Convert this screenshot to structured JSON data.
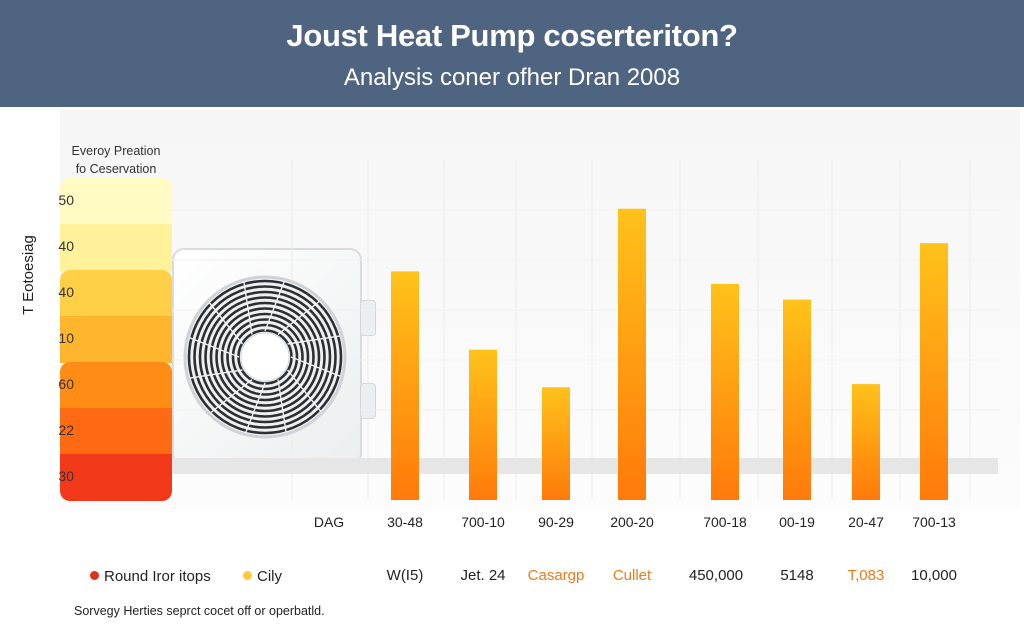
{
  "header": {
    "title": "Joust Heat Pump coserteriton?",
    "subtitle": "Analysis coner ofher Dran 2008"
  },
  "colors": {
    "header_bg": "#4e6480",
    "bar_top": "#ffc21a",
    "bar_bottom": "#ff7a0a"
  },
  "icon": "heat-pump-outdoor-unit",
  "scale": {
    "title_lines": [
      "Everoy Preation",
      "fo Ceservation"
    ],
    "ylabel": "T Eotoesiag",
    "segments": [
      {
        "label": "50",
        "color": "#fffbc2"
      },
      {
        "label": "40",
        "color": "#fff29a"
      },
      {
        "label": "40",
        "color": "#ffcf47"
      },
      {
        "label": "10",
        "color": "#ffb62e"
      },
      {
        "label": "60",
        "color": "#ff8c14"
      },
      {
        "label": "22",
        "color": "#ff6a12"
      },
      {
        "label": "30",
        "color": "#f23a1a"
      }
    ]
  },
  "chart_data": {
    "type": "bar",
    "title": "Joust Heat Pump coserteriton?",
    "subtitle": "Analysis coner ofher Dran 2008",
    "ylabel": "T Eotoesiag",
    "ylim": [
      0,
      100
    ],
    "grid": true,
    "categories": [
      "DAG",
      "30-48",
      "700-10",
      "90-29",
      "200-20",
      "700-18",
      "00-19",
      "20-47",
      "700-13"
    ],
    "values": [
      null,
      73,
      48,
      36,
      93,
      69,
      64,
      37,
      82
    ]
  },
  "legend": {
    "items": [
      {
        "label": "Round Iror itops",
        "color": "#e0301e"
      },
      {
        "label": "Cily",
        "color": "#ffc93c"
      }
    ]
  },
  "value_row": [
    {
      "text": "W(I5)",
      "color": "#222222"
    },
    {
      "text": "Jet. 24",
      "color": "#222222"
    },
    {
      "text": "Casargp",
      "color": "#f07a1a"
    },
    {
      "text": "Cullet",
      "color": "#f07a1a"
    },
    {
      "text": "450,000",
      "color": "#222222"
    },
    {
      "text": "5148",
      "color": "#222222"
    },
    {
      "text": "T,083",
      "color": "#f07a1a"
    },
    {
      "text": "10,000",
      "color": "#222222"
    }
  ],
  "footer": "Sorvegy Herties seprct cocet off or operbatld."
}
